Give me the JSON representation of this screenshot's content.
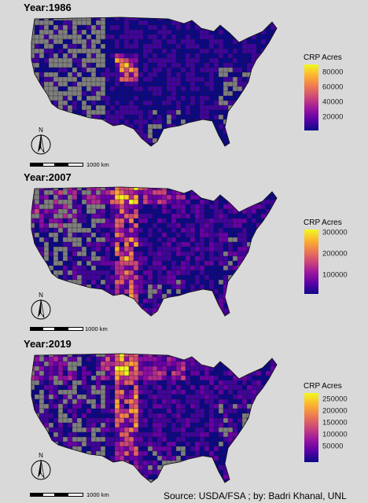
{
  "panels": [
    {
      "title": "Year:1986",
      "legend_title": "CRP Acres",
      "legend_ticks": [
        "80000",
        "60000",
        "40000",
        "20000"
      ],
      "scale_label": "1000 km",
      "compass_label": "N"
    },
    {
      "title": "Year:2007",
      "legend_title": "CRP Acres",
      "legend_ticks": [
        "300000",
        "200000",
        "100000"
      ],
      "scale_label": "1000 km",
      "compass_label": "N"
    },
    {
      "title": "Year:2019",
      "legend_title": "CRP Acres",
      "legend_ticks": [
        "250000",
        "200000",
        "150000",
        "100000",
        "50000"
      ],
      "scale_label": "1000 km",
      "compass_label": "N"
    }
  ],
  "source": "Source: USDA/FSA ; by: Badri Khanal, UNL",
  "colors": {
    "background": "#d9d9d9",
    "no_data": "#7f7f7f",
    "low": "#0d0887",
    "high": "#f0f921"
  }
}
